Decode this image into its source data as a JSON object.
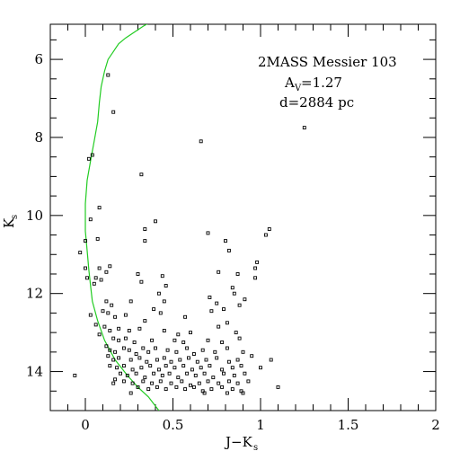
{
  "chart_data": {
    "type": "scatter",
    "title_lines": [
      "2MASS Messier 103",
      "A",
      "=1.27",
      "d=2884 pc"
    ],
    "annotation": {
      "name": "2MASS Messier 103",
      "extinction_symbol": "A",
      "extinction_subscript": "V",
      "extinction_value": "=1.27",
      "distance": "d=2884 pc"
    },
    "xlabel": {
      "main": "J−K",
      "sub": "s"
    },
    "ylabel": {
      "main": "K",
      "sub": "s"
    },
    "xlim": [
      -0.2,
      2.0
    ],
    "ylim": [
      15.0,
      5.1
    ],
    "y_inverted": true,
    "x_ticks": [
      {
        "value": 0,
        "label": "0"
      },
      {
        "value": 0.5,
        "label": "0.5"
      },
      {
        "value": 1,
        "label": "1"
      },
      {
        "value": 1.5,
        "label": "1.5"
      },
      {
        "value": 2,
        "label": "2"
      }
    ],
    "x_minor_step": 0.1,
    "y_ticks": [
      {
        "value": 6,
        "label": "6"
      },
      {
        "value": 8,
        "label": "8"
      },
      {
        "value": 10,
        "label": "10"
      },
      {
        "value": 12,
        "label": "12"
      },
      {
        "value": 14,
        "label": "14"
      }
    ],
    "y_minor_step": 0.5,
    "colors": {
      "isochrone": "#22cc22",
      "points": "#000000",
      "axes": "#000000"
    },
    "isochrone": {
      "x": [
        0.42,
        0.36,
        0.3,
        0.24,
        0.17,
        0.11,
        0.07,
        0.04,
        0.03,
        0.02,
        0.01,
        0.0,
        0.0,
        0.01,
        0.03,
        0.05,
        0.07,
        0.08,
        0.09,
        0.11,
        0.13,
        0.16,
        0.19,
        0.23,
        0.28,
        0.33,
        0.37
      ],
      "y": [
        15.0,
        14.65,
        14.4,
        14.1,
        13.7,
        13.2,
        12.7,
        12.2,
        11.8,
        11.4,
        10.9,
        10.4,
        9.7,
        9.1,
        8.6,
        8.1,
        7.6,
        7.1,
        6.7,
        6.3,
        6.0,
        5.8,
        5.6,
        5.45,
        5.3,
        5.15,
        5.05
      ]
    },
    "series": [
      {
        "points": [
          [
            0.13,
            6.4
          ],
          [
            0.16,
            7.35
          ],
          [
            0.66,
            8.1
          ],
          [
            1.25,
            7.75
          ],
          [
            0.02,
            8.55
          ],
          [
            0.04,
            8.45
          ],
          [
            0.32,
            8.95
          ],
          [
            0.08,
            9.8
          ],
          [
            0.03,
            10.1
          ],
          [
            0.4,
            10.15
          ],
          [
            0.34,
            10.35
          ],
          [
            0.34,
            10.65
          ],
          [
            0.7,
            10.45
          ],
          [
            1.05,
            10.35
          ],
          [
            1.03,
            10.5
          ],
          [
            0.07,
            10.6
          ],
          [
            0.0,
            10.65
          ],
          [
            0.8,
            10.65
          ],
          [
            0.82,
            10.9
          ],
          [
            -0.03,
            10.95
          ],
          [
            0.0,
            11.35
          ],
          [
            0.08,
            11.35
          ],
          [
            0.14,
            11.3
          ],
          [
            0.12,
            11.45
          ],
          [
            0.3,
            11.5
          ],
          [
            0.44,
            11.55
          ],
          [
            0.98,
            11.2
          ],
          [
            0.97,
            11.35
          ],
          [
            0.76,
            11.45
          ],
          [
            0.87,
            11.5
          ],
          [
            0.32,
            11.7
          ],
          [
            0.01,
            11.6
          ],
          [
            0.06,
            11.6
          ],
          [
            0.09,
            11.65
          ],
          [
            0.05,
            11.75
          ],
          [
            0.46,
            11.8
          ],
          [
            0.84,
            11.85
          ],
          [
            0.97,
            11.6
          ],
          [
            0.42,
            12.0
          ],
          [
            0.85,
            12.0
          ],
          [
            0.12,
            12.2
          ],
          [
            0.15,
            12.3
          ],
          [
            0.26,
            12.2
          ],
          [
            0.45,
            12.2
          ],
          [
            0.71,
            12.1
          ],
          [
            0.75,
            12.25
          ],
          [
            0.91,
            12.15
          ],
          [
            0.39,
            12.4
          ],
          [
            0.43,
            12.5
          ],
          [
            0.13,
            12.5
          ],
          [
            0.1,
            12.45
          ],
          [
            0.72,
            12.45
          ],
          [
            0.79,
            12.4
          ],
          [
            0.88,
            12.3
          ],
          [
            0.03,
            12.55
          ],
          [
            0.17,
            12.6
          ],
          [
            0.23,
            12.55
          ],
          [
            0.34,
            12.7
          ],
          [
            0.57,
            12.6
          ],
          [
            0.81,
            12.75
          ],
          [
            0.76,
            12.85
          ],
          [
            0.06,
            12.8
          ],
          [
            0.11,
            12.85
          ],
          [
            0.14,
            12.95
          ],
          [
            0.19,
            12.9
          ],
          [
            0.25,
            12.95
          ],
          [
            0.31,
            12.9
          ],
          [
            0.45,
            12.95
          ],
          [
            0.53,
            13.05
          ],
          [
            0.6,
            13.0
          ],
          [
            0.86,
            13.0
          ],
          [
            0.88,
            13.15
          ],
          [
            0.08,
            13.05
          ],
          [
            0.16,
            13.15
          ],
          [
            0.19,
            13.2
          ],
          [
            0.23,
            13.15
          ],
          [
            0.28,
            13.25
          ],
          [
            0.38,
            13.2
          ],
          [
            0.51,
            13.2
          ],
          [
            0.56,
            13.25
          ],
          [
            0.7,
            13.2
          ],
          [
            0.78,
            13.25
          ],
          [
            0.12,
            13.35
          ],
          [
            0.14,
            13.45
          ],
          [
            0.17,
            13.5
          ],
          [
            0.22,
            13.4
          ],
          [
            0.25,
            13.45
          ],
          [
            0.29,
            13.55
          ],
          [
            0.33,
            13.4
          ],
          [
            0.36,
            13.5
          ],
          [
            0.4,
            13.4
          ],
          [
            0.47,
            13.45
          ],
          [
            0.52,
            13.5
          ],
          [
            0.58,
            13.4
          ],
          [
            0.62,
            13.55
          ],
          [
            0.67,
            13.45
          ],
          [
            0.74,
            13.5
          ],
          [
            0.81,
            13.4
          ],
          [
            0.9,
            13.5
          ],
          [
            0.95,
            13.6
          ],
          [
            0.13,
            13.6
          ],
          [
            0.16,
            13.7
          ],
          [
            0.19,
            13.65
          ],
          [
            0.26,
            13.7
          ],
          [
            0.31,
            13.65
          ],
          [
            0.35,
            13.75
          ],
          [
            0.41,
            13.7
          ],
          [
            0.45,
            13.65
          ],
          [
            0.49,
            13.75
          ],
          [
            0.54,
            13.7
          ],
          [
            0.59,
            13.65
          ],
          [
            0.64,
            13.75
          ],
          [
            0.69,
            13.7
          ],
          [
            0.75,
            13.65
          ],
          [
            0.82,
            13.75
          ],
          [
            0.87,
            13.7
          ],
          [
            1.06,
            13.7
          ],
          [
            0.14,
            13.85
          ],
          [
            0.18,
            13.9
          ],
          [
            0.22,
            13.85
          ],
          [
            0.27,
            13.95
          ],
          [
            0.32,
            13.9
          ],
          [
            0.37,
            13.85
          ],
          [
            0.42,
            13.95
          ],
          [
            0.46,
            13.85
          ],
          [
            0.51,
            13.9
          ],
          [
            0.56,
            13.85
          ],
          [
            0.61,
            13.95
          ],
          [
            0.66,
            13.9
          ],
          [
            0.71,
            13.85
          ],
          [
            0.78,
            13.95
          ],
          [
            0.84,
            13.9
          ],
          [
            0.89,
            13.85
          ],
          [
            1.0,
            13.9
          ],
          [
            0.2,
            14.05
          ],
          [
            0.24,
            14.1
          ],
          [
            0.29,
            14.05
          ],
          [
            0.34,
            14.15
          ],
          [
            0.39,
            14.05
          ],
          [
            0.44,
            14.1
          ],
          [
            0.48,
            14.05
          ],
          [
            0.53,
            14.15
          ],
          [
            0.58,
            14.05
          ],
          [
            0.63,
            14.1
          ],
          [
            0.68,
            14.05
          ],
          [
            0.73,
            14.15
          ],
          [
            0.79,
            14.05
          ],
          [
            0.85,
            14.1
          ],
          [
            0.91,
            14.05
          ],
          [
            -0.06,
            14.1
          ],
          [
            0.17,
            14.2
          ],
          [
            0.22,
            14.25
          ],
          [
            0.27,
            14.3
          ],
          [
            0.33,
            14.25
          ],
          [
            0.38,
            14.3
          ],
          [
            0.43,
            14.25
          ],
          [
            0.49,
            14.3
          ],
          [
            0.55,
            14.25
          ],
          [
            0.6,
            14.35
          ],
          [
            0.65,
            14.3
          ],
          [
            0.7,
            14.25
          ],
          [
            0.76,
            14.3
          ],
          [
            0.82,
            14.25
          ],
          [
            0.87,
            14.3
          ],
          [
            0.93,
            14.25
          ],
          [
            0.16,
            14.3
          ],
          [
            0.3,
            14.4
          ],
          [
            0.36,
            14.45
          ],
          [
            0.41,
            14.4
          ],
          [
            0.46,
            14.45
          ],
          [
            0.52,
            14.4
          ],
          [
            0.57,
            14.45
          ],
          [
            0.62,
            14.4
          ],
          [
            0.67,
            14.5
          ],
          [
            0.72,
            14.45
          ],
          [
            0.78,
            14.4
          ],
          [
            0.84,
            14.45
          ],
          [
            0.89,
            14.5
          ],
          [
            1.1,
            14.4
          ],
          [
            0.26,
            14.55
          ],
          [
            0.68,
            14.55
          ],
          [
            0.81,
            14.55
          ],
          [
            0.9,
            14.55
          ]
        ]
      }
    ]
  }
}
